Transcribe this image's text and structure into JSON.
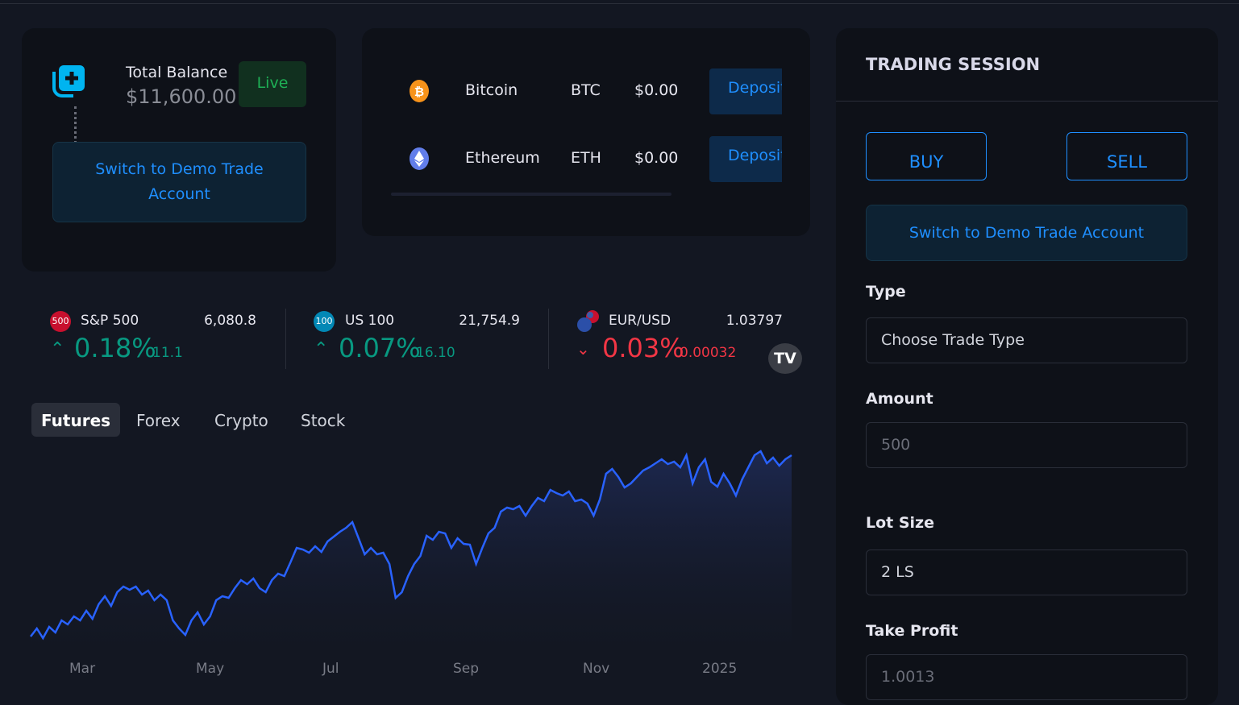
{
  "balance": {
    "title": "Total Balance",
    "amount": "$11,600.00",
    "mode": "Live",
    "switch_label": "Switch to Demo Trade Account",
    "icon": "add-account-icon"
  },
  "assets": [
    {
      "name": "Bitcoin",
      "symbol": "BTC",
      "balance": "$0.00",
      "action": "Deposit",
      "icon": "bitcoin-icon",
      "color": "#f7931a"
    },
    {
      "name": "Ethereum",
      "symbol": "ETH",
      "balance": "$0.00",
      "action": "Deposit",
      "icon": "ethereum-icon",
      "color": "#627eea"
    }
  ],
  "tickers": [
    {
      "badge": "500",
      "name": "S&P 500",
      "value": "6,080.8",
      "pct": "0.18%",
      "change": "11.1",
      "direction": "up",
      "badge_color": "#c8102e"
    },
    {
      "badge": "100",
      "name": "US 100",
      "value": "21,754.9",
      "pct": "0.07%",
      "change": "16.10",
      "direction": "up",
      "badge_color": "#0288b5"
    },
    {
      "badge": "",
      "name": "EUR/USD",
      "value": "1.03797",
      "pct": "0.03%",
      "change": "0.00032",
      "direction": "down"
    }
  ],
  "tabs": [
    "Futures",
    "Forex",
    "Crypto",
    "Stock"
  ],
  "active_tab": "Futures",
  "chart_data": {
    "type": "area",
    "x_ticks": [
      "Mar",
      "May",
      "Jul",
      "Sep",
      "Nov",
      "2025"
    ],
    "color": "#2962ff",
    "values": [
      10,
      20,
      8,
      22,
      15,
      30,
      25,
      35,
      30,
      42,
      32,
      50,
      60,
      48,
      65,
      72,
      68,
      72,
      62,
      67,
      55,
      62,
      55,
      30,
      20,
      12,
      30,
      40,
      25,
      35,
      55,
      60,
      58,
      70,
      80,
      75,
      82,
      70,
      65,
      80,
      88,
      85,
      102,
      120,
      118,
      114,
      122,
      115,
      128,
      134,
      140,
      145,
      152,
      132,
      112,
      120,
      112,
      114,
      100,
      58,
      65,
      85,
      100,
      110,
      135,
      130,
      140,
      138,
      120,
      132,
      125,
      124,
      100,
      120,
      138,
      145,
      165,
      170,
      168,
      172,
      160,
      172,
      182,
      178,
      192,
      188,
      185,
      190,
      178,
      180,
      175,
      160,
      180,
      212,
      218,
      208,
      195,
      200,
      208,
      216,
      220,
      225,
      230,
      224,
      227,
      220,
      235,
      200,
      220,
      230,
      202,
      196,
      212,
      200,
      185,
      205,
      220,
      235,
      240,
      225,
      232,
      222,
      230,
      235
    ]
  },
  "session": {
    "title": "TRADING SESSION",
    "buy": "BUY",
    "sell": "SELL",
    "switch_label": "Switch to Demo Trade Account",
    "type_label": "Type",
    "type_placeholder": "Choose Trade Type",
    "amount_label": "Amount",
    "amount_placeholder": "500",
    "lot_label": "Lot Size",
    "lot_value": "2 LS",
    "tp_label": "Take Profit",
    "tp_placeholder": "1.0013"
  }
}
